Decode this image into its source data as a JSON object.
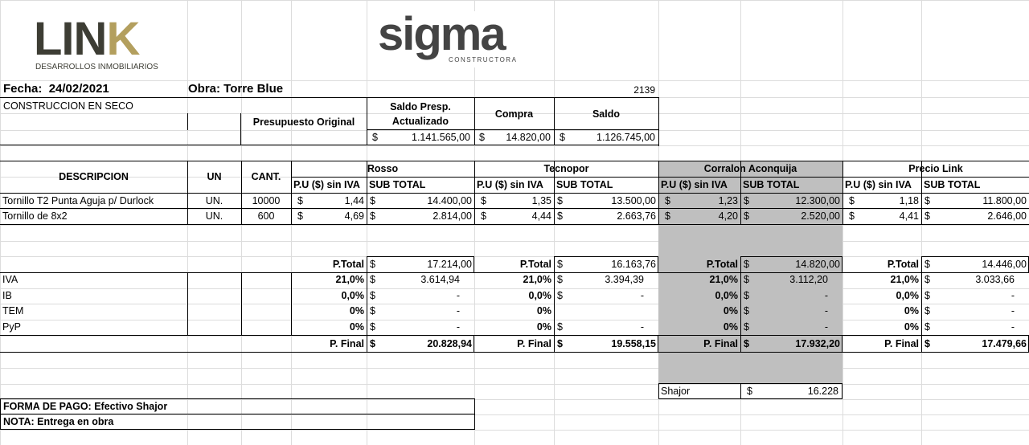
{
  "logos": {
    "link_word_1": "LIN",
    "link_word_2": "K",
    "link_sub": "DESARROLLOS INMOBILIARIOS",
    "sigma_word": "sigma",
    "sigma_sub": "CONSTRUCTORA"
  },
  "header": {
    "fecha_label": "Fecha:",
    "fecha_value": "24/02/2021",
    "obra_label": "Obra: Torre Blue",
    "code": "2139",
    "category": "CONSTRUCCION EN SECO"
  },
  "budget": {
    "col1": "Presupuesto Original",
    "col2_line1": "Saldo Presp.",
    "col2_line2": "Actualizado",
    "col3": "Compra",
    "col4": "Saldo",
    "currency": "$",
    "saldo_actualizado": "1.141.565,00",
    "compra": "14.820,00",
    "saldo": "1.126.745,00"
  },
  "table": {
    "col_desc": "DESCRIPCION",
    "col_un": "UN",
    "col_cant": "CANT.",
    "pu_label": "P.U ($) sin IVA",
    "sub_label": "SUB TOTAL",
    "suppliers": [
      "Rosso",
      "Tecnopor",
      "Corralon Aconquija",
      "Precio Link"
    ],
    "items": [
      {
        "desc": "Tornillo T2 Punta Aguja p/ Durlock",
        "un": "UN.",
        "cant": "10000",
        "prices": [
          {
            "pu": "1,44",
            "sub": "14.400,00"
          },
          {
            "pu": "1,35",
            "sub": "13.500,00"
          },
          {
            "pu": "1,23",
            "sub": "12.300,00"
          },
          {
            "pu": "1,18",
            "sub": "11.800,00"
          }
        ]
      },
      {
        "desc": "Tornillo de 8x2",
        "un": "UN.",
        "cant": "600",
        "prices": [
          {
            "pu": "4,69",
            "sub": "2.814,00"
          },
          {
            "pu": "4,44",
            "sub": "2.663,76"
          },
          {
            "pu": "4,20",
            "sub": "2.520,00"
          },
          {
            "pu": "4,41",
            "sub": "2.646,00"
          }
        ]
      }
    ]
  },
  "totals": {
    "ptotal_label": "P.Total",
    "pfinal_label": "P. Final",
    "row_labels": [
      "IVA",
      "IB",
      "TEM",
      "PyP"
    ],
    "suppliers": [
      {
        "ptotal": "17.214,00",
        "rows": [
          {
            "pct": "21,0%",
            "val": "3.614,94"
          },
          {
            "pct": "0,0%",
            "val": "-"
          },
          {
            "pct": "0%",
            "val": "-"
          },
          {
            "pct": "0%",
            "val": "-"
          }
        ],
        "pfinal": "20.828,94"
      },
      {
        "ptotal": "16.163,76",
        "rows": [
          {
            "pct": "21,0%",
            "val": "3.394,39"
          },
          {
            "pct": "0,0%",
            "val": "-"
          },
          {
            "pct": "0%",
            "val": ""
          },
          {
            "pct": "0%",
            "val": "-"
          }
        ],
        "pfinal": "19.558,15"
      },
      {
        "ptotal": "14.820,00",
        "rows": [
          {
            "pct": "21,0%",
            "val": "3.112,20"
          },
          {
            "pct": "0,0%",
            "val": "-"
          },
          {
            "pct": "0%",
            "val": "-"
          },
          {
            "pct": "0%",
            "val": "-"
          }
        ],
        "pfinal": "17.932,20"
      },
      {
        "ptotal": "14.446,00",
        "rows": [
          {
            "pct": "21,0%",
            "val": "3.033,66"
          },
          {
            "pct": "0,0%",
            "val": "-"
          },
          {
            "pct": "0%",
            "val": "-"
          },
          {
            "pct": "0%",
            "val": "-"
          }
        ],
        "pfinal": "17.479,66"
      }
    ]
  },
  "shajor": {
    "label": "Shajor",
    "value": "16.228"
  },
  "footer": {
    "forma_pago": "FORMA DE PAGO: Efectivo Shajor",
    "nota": "NOTA: Entrega en obra"
  },
  "colors": {
    "highlight": "#bfbfbf",
    "grid": "#dcdcdc",
    "link_dark": "#3d3d34",
    "link_accent": "#b39f5e",
    "sigma": "#444444"
  }
}
